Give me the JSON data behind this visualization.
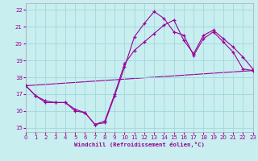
{
  "xlabel": "Windchill (Refroidissement éolien,°C)",
  "background_color": "#c8eef0",
  "grid_color": "#a0d8dc",
  "line_color": "#990099",
  "xlim": [
    0,
    23
  ],
  "ylim": [
    14.75,
    22.4
  ],
  "yticks": [
    15,
    16,
    17,
    18,
    19,
    20,
    21,
    22
  ],
  "xticks": [
    0,
    1,
    2,
    3,
    4,
    5,
    6,
    7,
    8,
    9,
    10,
    11,
    12,
    13,
    14,
    15,
    16,
    17,
    18,
    19,
    20,
    21,
    22,
    23
  ],
  "line1_x": [
    0,
    1,
    2,
    3,
    4,
    5,
    6,
    7,
    8,
    9,
    10,
    11,
    12,
    13,
    14,
    15,
    16,
    17,
    18,
    19,
    20,
    21,
    22,
    23
  ],
  "line1_y": [
    17.5,
    16.9,
    16.5,
    16.5,
    16.5,
    16.0,
    15.9,
    15.2,
    15.3,
    16.9,
    18.6,
    20.4,
    21.2,
    21.9,
    21.5,
    20.7,
    20.5,
    19.3,
    20.3,
    20.7,
    20.1,
    19.5,
    18.5,
    18.4
  ],
  "line2_x": [
    0,
    1,
    2,
    3,
    4,
    5,
    6,
    7,
    8,
    9,
    10,
    11,
    12,
    13,
    14,
    15,
    16,
    17,
    18,
    19,
    20,
    21,
    22,
    23
  ],
  "line2_y": [
    17.5,
    16.9,
    16.6,
    16.5,
    16.5,
    16.1,
    15.9,
    15.2,
    15.4,
    17.0,
    18.8,
    19.6,
    20.1,
    20.6,
    21.1,
    21.4,
    20.2,
    19.4,
    20.5,
    20.8,
    20.3,
    19.8,
    19.2,
    18.5
  ],
  "line3_x": [
    0,
    23
  ],
  "line3_y": [
    17.5,
    18.4
  ]
}
